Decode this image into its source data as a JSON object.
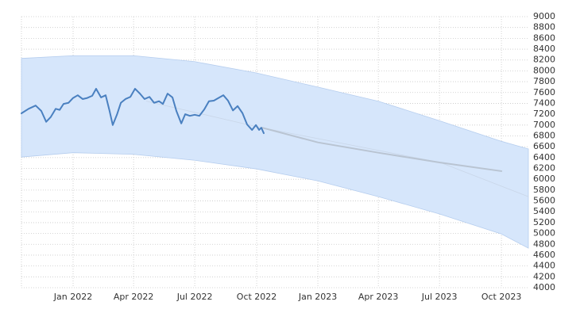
{
  "chart_data": {
    "type": "line",
    "xlim": [
      2021.789,
      2023.86
    ],
    "xticks": [
      {
        "value": 2022.0,
        "label": "Jan 2022"
      },
      {
        "value": 2022.247,
        "label": "Apr 2022"
      },
      {
        "value": 2022.497,
        "label": "Jul 2022"
      },
      {
        "value": 2022.75,
        "label": "Oct 2022"
      },
      {
        "value": 2023.0,
        "label": "Jan 2023"
      },
      {
        "value": 2023.247,
        "label": "Apr 2023"
      },
      {
        "value": 2023.497,
        "label": "Jul 2023"
      },
      {
        "value": 2023.75,
        "label": "Oct 2023"
      }
    ],
    "ylim": [
      4000,
      9000
    ],
    "yticks": [
      4000,
      4200,
      4400,
      4600,
      4800,
      5000,
      5200,
      5400,
      5600,
      5800,
      6000,
      6200,
      6400,
      6600,
      6800,
      7000,
      7200,
      7400,
      7600,
      7800,
      8000,
      8200,
      8400,
      8600,
      8800,
      9000
    ],
    "grid": true,
    "band": {
      "color": "#d6e6fb",
      "x": [
        2021.789,
        2022.0,
        2022.247,
        2022.497,
        2022.75,
        2023.0,
        2023.247,
        2023.497,
        2023.75,
        2023.86
      ],
      "upper": [
        8230,
        8280,
        8280,
        8170,
        7960,
        7700,
        7440,
        7080,
        6700,
        6560
      ],
      "lower": [
        6410,
        6490,
        6460,
        6350,
        6190,
        5970,
        5680,
        5360,
        4990,
        4730
      ]
    },
    "series": [
      {
        "color": "#c9d6e8",
        "line_width": 0.8,
        "x": [
          2022.3,
          2022.75,
          2023.0,
          2023.5,
          2023.86
        ],
        "values": [
          7440,
          6970,
          6750,
          6310,
          5680
        ]
      },
      {
        "color": "#b9c4d2",
        "line_width": 2,
        "x": [
          2022.773,
          2023.0,
          2023.247,
          2023.497,
          2023.75
        ],
        "values": [
          6950,
          6680,
          6490,
          6310,
          6150
        ]
      },
      {
        "color": "#4a80c0",
        "line_width": 2,
        "x": [
          2021.789,
          2021.818,
          2021.847,
          2021.87,
          2021.89,
          2021.909,
          2021.929,
          2021.945,
          2021.961,
          2021.981,
          2022.0,
          2022.019,
          2022.039,
          2022.058,
          2022.078,
          2022.094,
          2022.114,
          2022.133,
          2022.149,
          2022.162,
          2022.179,
          2022.195,
          2022.214,
          2022.234,
          2022.253,
          2022.273,
          2022.292,
          2022.312,
          2022.331,
          2022.351,
          2022.367,
          2022.386,
          2022.406,
          2022.422,
          2022.442,
          2022.458,
          2022.477,
          2022.497,
          2022.516,
          2022.536,
          2022.555,
          2022.575,
          2022.594,
          2022.614,
          2022.633,
          2022.653,
          2022.672,
          2022.692,
          2022.711,
          2022.731,
          2022.747,
          2022.76,
          2022.769,
          2022.779
        ],
        "values": [
          7216,
          7300,
          7360,
          7260,
          7060,
          7150,
          7300,
          7280,
          7390,
          7410,
          7500,
          7550,
          7480,
          7500,
          7540,
          7670,
          7510,
          7550,
          7260,
          7000,
          7190,
          7410,
          7480,
          7520,
          7670,
          7580,
          7480,
          7520,
          7410,
          7440,
          7390,
          7580,
          7510,
          7260,
          7030,
          7200,
          7170,
          7190,
          7170,
          7290,
          7440,
          7450,
          7500,
          7550,
          7450,
          7270,
          7350,
          7220,
          7010,
          6910,
          7000,
          6910,
          6950,
          6850
        ]
      }
    ]
  }
}
